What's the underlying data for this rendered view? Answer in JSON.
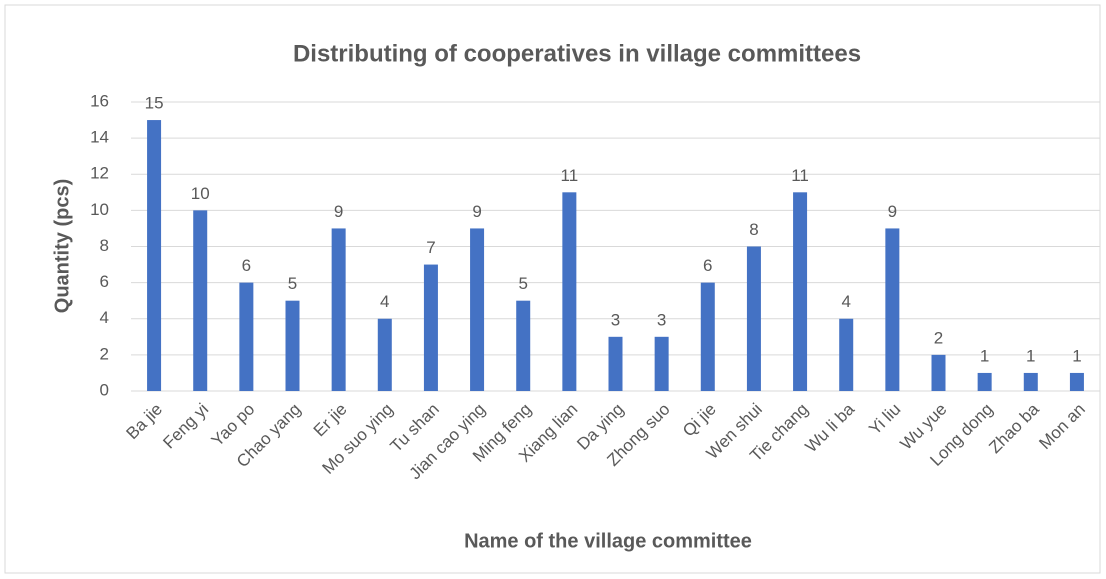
{
  "chart_data": {
    "type": "bar",
    "title": "Distributing of cooperatives in village committees",
    "x_label": "Name of the village committee",
    "y_label": "Quantity (pcs)",
    "categories": [
      "Ba jie",
      "Feng yi",
      "Yao po",
      "Chao yang",
      "Er jie",
      "Mo suo ying",
      "Tu shan",
      "Jian cao ying",
      "Ming feng",
      "Xiang lian",
      "Da ying",
      "Zhong suo",
      "Qi jie",
      "Wen shui",
      "Tie chang",
      "Wu li ba",
      "Yi liu",
      "Wu yue",
      "Long dong",
      "Zhao ba",
      "Mon an"
    ],
    "values": [
      15,
      10,
      6,
      5,
      9,
      4,
      7,
      9,
      5,
      11,
      3,
      3,
      6,
      8,
      11,
      4,
      9,
      2,
      1,
      1,
      1
    ],
    "color": "#4472c4",
    "ylim": [
      0,
      16
    ],
    "yticks": [
      0,
      2,
      4,
      6,
      8,
      10,
      12,
      14,
      16
    ],
    "grid": true
  }
}
